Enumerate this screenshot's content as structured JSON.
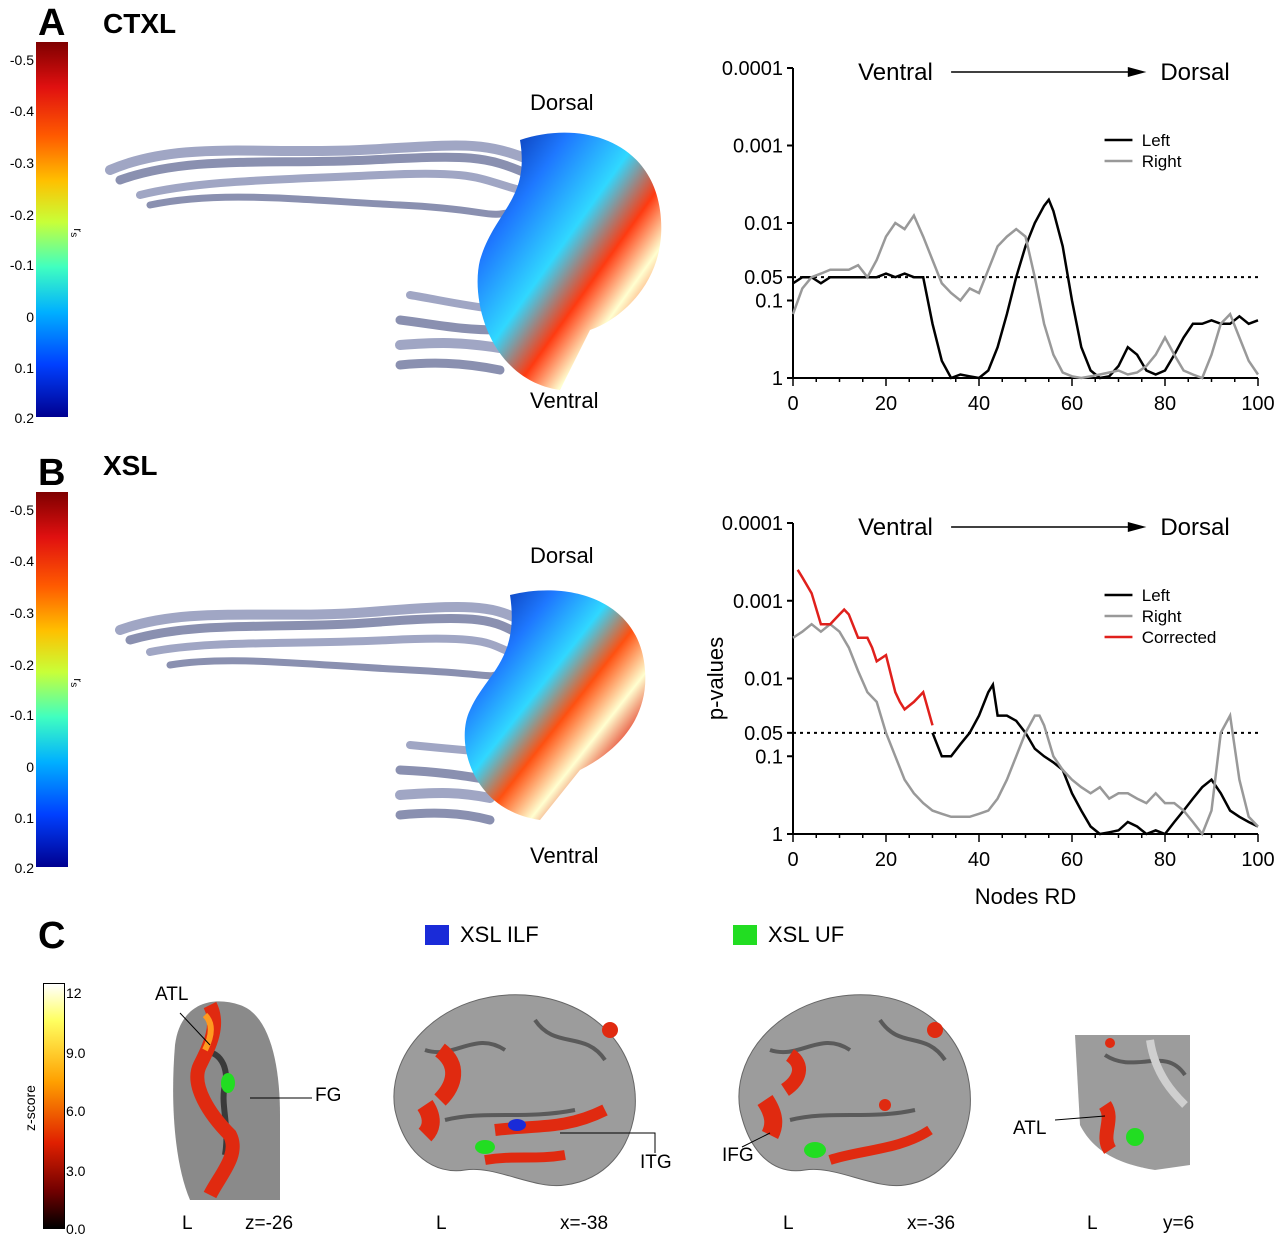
{
  "panels": {
    "A": {
      "letter": "A",
      "title": "CTXL",
      "dorsal": "Dorsal",
      "ventral": "Ventral"
    },
    "B": {
      "letter": "B",
      "title": "XSL",
      "dorsal": "Dorsal",
      "ventral": "Ventral"
    },
    "C": {
      "letter": "C"
    }
  },
  "colorbar_ab": {
    "ticks": [
      "-0.5",
      "-0.4",
      "-0.3",
      "-0.2",
      "-0.1",
      "0",
      "0.1",
      "0.2"
    ],
    "symbol": "r",
    "subscript": "s"
  },
  "colorbar_c": {
    "ticks": [
      "12",
      "9.0",
      "6.0",
      "3.0",
      "0.0"
    ],
    "label": "z-score"
  },
  "legend_c": {
    "ilf": "XSL ILF",
    "uf": "XSL UF",
    "ilf_color": "#1a2bd8",
    "uf_color": "#22dd22"
  },
  "brains": [
    {
      "orient": "L",
      "coord": "z=-26",
      "labels": [
        "ATL",
        "FG"
      ]
    },
    {
      "orient": "L",
      "coord": "x=-38",
      "labels": [
        "ITG"
      ]
    },
    {
      "orient": "L",
      "coord": "x=-36",
      "labels": [
        "IFG"
      ]
    },
    {
      "orient": "L",
      "coord": "y=6",
      "labels": [
        "ATL"
      ]
    }
  ],
  "chart_data": [
    {
      "type": "line",
      "title": "",
      "annotation": {
        "left": "Ventral",
        "right": "Dorsal"
      },
      "xlabel": "",
      "ylabel": "",
      "xlim": [
        0,
        100
      ],
      "y_scale": "log (inverted)",
      "x_ticks": [
        "0",
        "20",
        "40",
        "60",
        "80",
        "100"
      ],
      "y_ticks": [
        "0.0001",
        "0.001",
        "0.01",
        "0.05",
        "0.1",
        "1"
      ],
      "threshold": 0.05,
      "legend": "top-right",
      "series": [
        {
          "name": "Left",
          "color": "#000000",
          "x": [
            0,
            2,
            4,
            6,
            8,
            10,
            12,
            14,
            16,
            18,
            20,
            22,
            24,
            26,
            28,
            30,
            32,
            34,
            36,
            38,
            40,
            42,
            44,
            46,
            48,
            50,
            52,
            54,
            55,
            56,
            58,
            60,
            62,
            64,
            66,
            68,
            70,
            72,
            74,
            76,
            78,
            80,
            82,
            84,
            86,
            88,
            90,
            92,
            94,
            96,
            98,
            100
          ],
          "y": [
            0.06,
            0.05,
            0.05,
            0.06,
            0.05,
            0.05,
            0.05,
            0.05,
            0.05,
            0.05,
            0.045,
            0.05,
            0.045,
            0.05,
            0.05,
            0.2,
            0.6,
            1,
            0.9,
            0.95,
            1,
            0.8,
            0.4,
            0.15,
            0.05,
            0.02,
            0.01,
            0.006,
            0.005,
            0.007,
            0.02,
            0.1,
            0.4,
            0.8,
            1,
            0.95,
            0.7,
            0.4,
            0.5,
            0.8,
            0.9,
            0.8,
            0.5,
            0.3,
            0.2,
            0.2,
            0.18,
            0.2,
            0.2,
            0.16,
            0.2,
            0.18
          ]
        },
        {
          "name": "Right",
          "color": "#999999",
          "x": [
            0,
            2,
            4,
            6,
            8,
            10,
            12,
            14,
            16,
            18,
            20,
            22,
            24,
            26,
            28,
            30,
            32,
            34,
            36,
            38,
            40,
            42,
            44,
            46,
            48,
            50,
            52,
            54,
            56,
            58,
            60,
            62,
            64,
            66,
            68,
            70,
            72,
            74,
            76,
            78,
            80,
            82,
            84,
            86,
            88,
            90,
            92,
            94,
            96,
            98,
            100
          ],
          "y": [
            0.15,
            0.07,
            0.05,
            0.045,
            0.04,
            0.04,
            0.04,
            0.035,
            0.05,
            0.03,
            0.015,
            0.01,
            0.012,
            0.008,
            0.015,
            0.03,
            0.06,
            0.08,
            0.1,
            0.07,
            0.08,
            0.04,
            0.02,
            0.015,
            0.012,
            0.015,
            0.05,
            0.2,
            0.5,
            0.85,
            0.95,
            1,
            0.95,
            0.9,
            0.85,
            0.8,
            0.9,
            0.85,
            0.7,
            0.5,
            0.3,
            0.5,
            0.8,
            0.9,
            1,
            0.5,
            0.2,
            0.15,
            0.3,
            0.6,
            0.9
          ]
        }
      ]
    },
    {
      "type": "line",
      "title": "",
      "annotation": {
        "left": "Ventral",
        "right": "Dorsal"
      },
      "xlabel": "Nodes RD",
      "ylabel": "p-values",
      "xlim": [
        0,
        100
      ],
      "y_scale": "log (inverted)",
      "x_ticks": [
        "0",
        "20",
        "40",
        "60",
        "80",
        "100"
      ],
      "y_ticks": [
        "0.0001",
        "0.001",
        "0.01",
        "0.05",
        "0.1",
        "1"
      ],
      "threshold": 0.05,
      "legend": "top-right",
      "series": [
        {
          "name": "Left",
          "color": "#000000",
          "x": [
            30,
            32,
            34,
            36,
            38,
            40,
            42,
            43,
            44,
            46,
            48,
            50,
            52,
            54,
            56,
            58,
            60,
            62,
            64,
            66,
            68,
            70,
            72,
            74,
            76,
            78,
            80,
            82,
            84,
            86,
            88,
            90,
            92,
            94,
            96,
            98,
            100
          ],
          "y": [
            0.05,
            0.1,
            0.1,
            0.07,
            0.05,
            0.03,
            0.015,
            0.012,
            0.03,
            0.03,
            0.035,
            0.05,
            0.08,
            0.1,
            0.12,
            0.15,
            0.3,
            0.5,
            0.8,
            1,
            0.95,
            0.9,
            0.7,
            0.8,
            1,
            0.9,
            1,
            0.7,
            0.5,
            0.35,
            0.25,
            0.2,
            0.3,
            0.5,
            0.6,
            0.7,
            0.8
          ]
        },
        {
          "name": "Right",
          "color": "#999999",
          "x": [
            0,
            2,
            4,
            6,
            8,
            10,
            12,
            14,
            16,
            18,
            20,
            22,
            24,
            26,
            28,
            30,
            32,
            34,
            36,
            38,
            40,
            42,
            44,
            46,
            48,
            50,
            52,
            53,
            54,
            56,
            58,
            60,
            62,
            64,
            66,
            68,
            70,
            72,
            74,
            76,
            78,
            80,
            82,
            84,
            86,
            88,
            90,
            92,
            94,
            96,
            98,
            100
          ],
          "y": [
            0.003,
            0.0025,
            0.002,
            0.0025,
            0.002,
            0.0025,
            0.004,
            0.008,
            0.015,
            0.02,
            0.05,
            0.1,
            0.2,
            0.3,
            0.4,
            0.5,
            0.55,
            0.6,
            0.6,
            0.6,
            0.55,
            0.5,
            0.35,
            0.2,
            0.1,
            0.05,
            0.03,
            0.03,
            0.04,
            0.1,
            0.15,
            0.2,
            0.25,
            0.3,
            0.25,
            0.35,
            0.3,
            0.3,
            0.35,
            0.4,
            0.3,
            0.4,
            0.4,
            0.5,
            0.7,
            1,
            0.5,
            0.05,
            0.03,
            0.2,
            0.6,
            0.8
          ]
        },
        {
          "name": "Corrected",
          "color": "#e0201c",
          "x": [
            1,
            2,
            4,
            6,
            8,
            10,
            11,
            12,
            14,
            16,
            17,
            18,
            20,
            22,
            23,
            24,
            26,
            28,
            30
          ],
          "y": [
            0.0004,
            0.0005,
            0.0008,
            0.002,
            0.002,
            0.0015,
            0.0013,
            0.0015,
            0.003,
            0.003,
            0.004,
            0.006,
            0.005,
            0.015,
            0.02,
            0.025,
            0.02,
            0.015,
            0.04
          ]
        }
      ]
    }
  ]
}
